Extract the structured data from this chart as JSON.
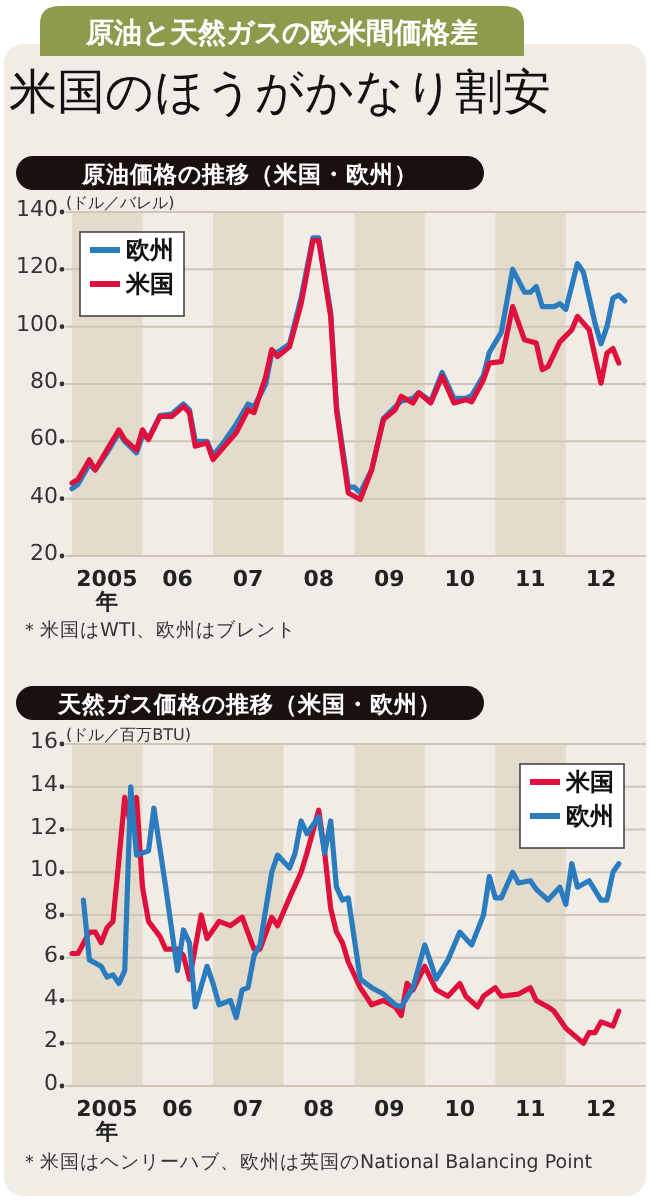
{
  "chart_data": [
    {
      "type": "other",
      "title": "原油と天然ガスの欧米間価格差",
      "subtitle": "米国のほうがかなり割安"
    },
    {
      "type": "line",
      "title": "原油価格の推移（米国・欧州）",
      "ylabel": "(ドル／バレル)",
      "legend": "top left",
      "grid": "y",
      "xlim": [
        "2004-12-01",
        "2013-02-19"
      ],
      "xticks": [
        {
          "value": "2005-07-01",
          "label": "2005\n年"
        },
        {
          "value": "2006-07-01",
          "label": "06"
        },
        {
          "value": "2007-07-01",
          "label": "07"
        },
        {
          "value": "2008-07-01",
          "label": "08"
        },
        {
          "value": "2009-07-01",
          "label": "09"
        },
        {
          "value": "2010-07-01",
          "label": "10"
        },
        {
          "value": "2011-07-01",
          "label": "11"
        },
        {
          "value": "2012-07-01",
          "label": "12"
        }
      ],
      "ylim": [
        20,
        140
      ],
      "yticks": [
        20,
        40,
        60,
        80,
        100,
        120,
        140
      ],
      "bands": [
        {
          "axis": "x",
          "from": "2005-01-01",
          "to": "2006-01-01",
          "color": "#e3dccd"
        },
        {
          "axis": "x",
          "from": "2007-01-01",
          "to": "2008-01-01",
          "color": "#e3dccd"
        },
        {
          "axis": "x",
          "from": "2009-01-01",
          "to": "2010-01-01",
          "color": "#e3dccd"
        },
        {
          "axis": "x",
          "from": "2011-01-01",
          "to": "2012-01-01",
          "color": "#e3dccd"
        }
      ],
      "series": [
        {
          "name": "欧州",
          "color": "#2b7bbf",
          "x": [
            "2005-01",
            "2005-02",
            "2005-04",
            "2005-05",
            "2005-07",
            "2005-09",
            "2005-10",
            "2005-12",
            "2006-01",
            "2006-02",
            "2006-04",
            "2006-06",
            "2006-08",
            "2006-09",
            "2006-10",
            "2006-12",
            "2007-01",
            "2007-03",
            "2007-05",
            "2007-07",
            "2007-08",
            "2007-10",
            "2007-11",
            "2007-12",
            "2008-02",
            "2008-04",
            "2008-06",
            "2008-07",
            "2008-09",
            "2008-10",
            "2008-12",
            "2009-01",
            "2009-02",
            "2009-04",
            "2009-06",
            "2009-08",
            "2009-09",
            "2009-11",
            "2009-12",
            "2010-02",
            "2010-04",
            "2010-06",
            "2010-08",
            "2010-09",
            "2010-11",
            "2010-12",
            "2011-02",
            "2011-04",
            "2011-06",
            "2011-07",
            "2011-08",
            "2011-09",
            "2011-11",
            "2011-12",
            "2012-01",
            "2012-03",
            "2012-04",
            "2012-06",
            "2012-07",
            "2012-08",
            "2012-09",
            "2012-10",
            "2012-11"
          ],
          "values": [
            43.5,
            45,
            52,
            50,
            56,
            63,
            60,
            56,
            62,
            61,
            69,
            69.5,
            73,
            71,
            60,
            60,
            55,
            60,
            66,
            73,
            72,
            80,
            91,
            91,
            94,
            110,
            131,
            131,
            105,
            72,
            44,
            44,
            42,
            50,
            68,
            72,
            74,
            75,
            77,
            74,
            84,
            75,
            75,
            76,
            83,
            91,
            98,
            120,
            112,
            112,
            114,
            107,
            107,
            108,
            106,
            122,
            119,
            101,
            94,
            100,
            110,
            111,
            109
          ]
        },
        {
          "name": "米国",
          "color": "#e0103c",
          "x": [
            "2005-01",
            "2005-02",
            "2005-04",
            "2005-05",
            "2005-07",
            "2005-09",
            "2005-10",
            "2005-12",
            "2006-01",
            "2006-02",
            "2006-04",
            "2006-06",
            "2006-08",
            "2006-09",
            "2006-10",
            "2006-12",
            "2007-01",
            "2007-03",
            "2007-05",
            "2007-07",
            "2007-08",
            "2007-10",
            "2007-11",
            "2007-12",
            "2008-02",
            "2008-04",
            "2008-06",
            "2008-07",
            "2008-09",
            "2008-10",
            "2008-12",
            "2009-02",
            "2009-04",
            "2009-06",
            "2009-08",
            "2009-09",
            "2009-11",
            "2009-12",
            "2010-02",
            "2010-04",
            "2010-06",
            "2010-08",
            "2010-09",
            "2010-11",
            "2010-12",
            "2011-02",
            "2011-04",
            "2011-06",
            "2011-08",
            "2011-09",
            "2011-10",
            "2011-12",
            "2012-02",
            "2012-03",
            "2012-05",
            "2012-07",
            "2012-08",
            "2012-09",
            "2012-10"
          ],
          "values": [
            45.5,
            46.7,
            53.6,
            50,
            57,
            64,
            60.6,
            57,
            64,
            60.6,
            68.7,
            68.7,
            72.2,
            70,
            58.3,
            59.5,
            53.6,
            58.3,
            63,
            71,
            70,
            82.7,
            92,
            89.6,
            93,
            108,
            130,
            130,
            103.5,
            71,
            42,
            39.7,
            50,
            67.6,
            71,
            75.7,
            73.4,
            76.9,
            73.4,
            82.7,
            73.4,
            74.5,
            73.8,
            81.5,
            87.3,
            87.8,
            107,
            95.4,
            94.3,
            85,
            86.1,
            94.7,
            98.9,
            103.6,
            98.9,
            80.3,
            90.8,
            92.4,
            87.3
          ]
        }
      ],
      "annotations": [
        "＊米国はWTI、欧州はブレント"
      ]
    },
    {
      "type": "line",
      "title": "天然ガス価格の推移（米国・欧州）",
      "ylabel": "(ドル／百万BTU)",
      "legend": "top right",
      "grid": "y",
      "xlim": [
        "2004-12-01",
        "2013-02-19"
      ],
      "xticks": [
        {
          "value": "2005-07-01",
          "label": "2005\n年"
        },
        {
          "value": "2006-07-01",
          "label": "06"
        },
        {
          "value": "2007-07-01",
          "label": "07"
        },
        {
          "value": "2008-07-01",
          "label": "08"
        },
        {
          "value": "2009-07-01",
          "label": "09"
        },
        {
          "value": "2010-07-01",
          "label": "10"
        },
        {
          "value": "2011-07-01",
          "label": "11"
        },
        {
          "value": "2012-07-01",
          "label": "12"
        }
      ],
      "ylim": [
        0,
        16
      ],
      "yticks": [
        0,
        2,
        4,
        6,
        8,
        10,
        12,
        14,
        16
      ],
      "bands": [
        {
          "axis": "x",
          "from": "2005-01-01",
          "to": "2006-01-01",
          "color": "#e3dccd"
        },
        {
          "axis": "x",
          "from": "2007-01-01",
          "to": "2008-01-01",
          "color": "#e3dccd"
        },
        {
          "axis": "x",
          "from": "2009-01-01",
          "to": "2010-01-01",
          "color": "#e3dccd"
        },
        {
          "axis": "x",
          "from": "2011-01-01",
          "to": "2012-01-01",
          "color": "#e3dccd"
        }
      ],
      "series": [
        {
          "name": "米国",
          "color": "#e0103c",
          "x": [
            "2005-01",
            "2005-02",
            "2005-04",
            "2005-05",
            "2005-06",
            "2005-07",
            "2005-08",
            "2005-09",
            "2005-10",
            "2005-11",
            "2005-12",
            "2006-01",
            "2006-02",
            "2006-04",
            "2006-05",
            "2006-07",
            "2006-08",
            "2006-09",
            "2006-11",
            "2006-12",
            "2007-02",
            "2007-04",
            "2007-06",
            "2007-08",
            "2007-09",
            "2007-11",
            "2007-12",
            "2008-02",
            "2008-04",
            "2008-05",
            "2008-07",
            "2008-08",
            "2008-09",
            "2008-10",
            "2008-11",
            "2008-12",
            "2009-02",
            "2009-04",
            "2009-06",
            "2009-08",
            "2009-09",
            "2009-10",
            "2009-11",
            "2010-01",
            "2010-03",
            "2010-05",
            "2010-07",
            "2010-08",
            "2010-10",
            "2010-11",
            "2011-01",
            "2011-02",
            "2011-05",
            "2011-07",
            "2011-08",
            "2011-10",
            "2011-11",
            "2012-01",
            "2012-04",
            "2012-05",
            "2012-06",
            "2012-07",
            "2012-09",
            "2012-10"
          ],
          "values": [
            6.2,
            6.2,
            7.2,
            7.2,
            6.7,
            7.4,
            7.7,
            10.6,
            13.5,
            12.2,
            13.5,
            9.3,
            7.7,
            7,
            6.4,
            6.4,
            6.1,
            5,
            8,
            6.9,
            7.7,
            7.5,
            7.9,
            6.4,
            6.4,
            7.9,
            7.5,
            8.8,
            10,
            10.9,
            12.9,
            10.9,
            8.3,
            7.2,
            6.7,
            5.8,
            4.6,
            3.8,
            4,
            3.7,
            3.3,
            4.8,
            4.5,
            5.6,
            4.5,
            4.2,
            4.8,
            4.2,
            3.7,
            4.2,
            4.6,
            4.2,
            4.3,
            4.6,
            4,
            3.7,
            3.5,
            2.7,
            2,
            2.5,
            2.5,
            3,
            2.8,
            3.5
          ]
        },
        {
          "name": "欧州",
          "color": "#2b7bbf",
          "x": [
            "2005-03",
            "2005-04",
            "2005-06",
            "2005-07",
            "2005-08",
            "2005-09",
            "2005-10",
            "2005-11",
            "2005-12",
            "2006-02",
            "2006-03",
            "2006-05",
            "2006-07",
            "2006-08",
            "2006-09",
            "2006-10",
            "2006-12",
            "2007-01",
            "2007-02",
            "2007-04",
            "2007-05",
            "2007-06",
            "2007-07",
            "2007-08",
            "2007-09",
            "2007-11",
            "2007-12",
            "2008-02",
            "2008-03",
            "2008-04",
            "2008-05",
            "2008-07",
            "2008-08",
            "2008-09",
            "2008-10",
            "2008-11",
            "2008-12",
            "2009-02",
            "2009-04",
            "2009-06",
            "2009-08",
            "2009-09",
            "2009-11",
            "2010-01",
            "2010-03",
            "2010-05",
            "2010-07",
            "2010-09",
            "2010-11",
            "2010-12",
            "2011-01",
            "2011-02",
            "2011-04",
            "2011-05",
            "2011-07",
            "2011-08",
            "2011-10",
            "2011-12",
            "2012-01",
            "2012-02",
            "2012-03",
            "2012-05",
            "2012-07",
            "2012-08",
            "2012-09",
            "2012-10"
          ],
          "values": [
            8.7,
            5.9,
            5.6,
            5.1,
            5.2,
            4.8,
            5.4,
            14,
            10.8,
            11,
            13,
            9.3,
            5.4,
            7.3,
            6.7,
            3.7,
            5.6,
            4.8,
            3.8,
            4,
            3.2,
            4.5,
            4.6,
            6.1,
            6.6,
            10,
            10.8,
            10.2,
            10.9,
            12.4,
            11.8,
            12.6,
            10.9,
            12.4,
            9.3,
            8.7,
            8.8,
            5,
            4.6,
            4.3,
            3.8,
            3.7,
            4.6,
            6.6,
            5,
            5.9,
            7.2,
            6.6,
            8,
            9.8,
            8.8,
            8.8,
            10,
            9.5,
            9.6,
            9.2,
            8.7,
            9.3,
            8.5,
            10.4,
            9.3,
            9.6,
            8.7,
            8.7,
            10,
            10.4
          ]
        }
      ],
      "annotations": [
        "＊米国はヘンリーハブ、欧州は英国のNational Balancing Point"
      ]
    }
  ]
}
